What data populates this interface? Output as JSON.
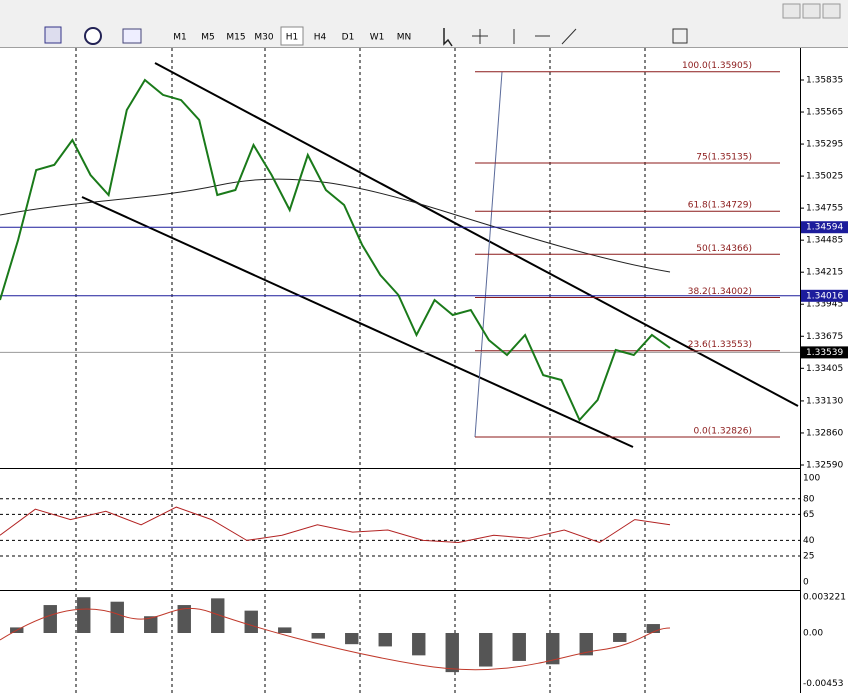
{
  "toolbar": {
    "timeframes": [
      "M1",
      "M5",
      "M15",
      "M30",
      "H1",
      "H4",
      "D1",
      "W1",
      "MN"
    ]
  },
  "price_axis": {
    "ticks": [
      1.35835,
      1.35565,
      1.35295,
      1.35025,
      1.34755,
      1.34485,
      1.34215,
      1.33945,
      1.33675,
      1.33405,
      1.3313,
      1.3286,
      1.3259
    ],
    "ticks_labels": [
      "1.35835",
      "1.35565",
      "1.35295",
      "1.35025",
      "1.34755",
      "1.34485",
      "1.34215",
      "1.33945",
      "1.33675",
      "1.33405",
      "1.33130",
      "1.32860",
      "1.32590"
    ],
    "markers": [
      {
        "value": 1.34594,
        "label": "1.34594",
        "color": "#1c1c9c"
      },
      {
        "value": 1.34016,
        "label": "1.34016",
        "color": "#1c1c9c"
      },
      {
        "value": 1.33539,
        "label": "1.33539",
        "color": "#000000"
      }
    ]
  },
  "fibonacci": [
    {
      "label": "100.0(1.35905)",
      "price": 1.35905
    },
    {
      "label": "75(1.35135)",
      "price": 1.35135
    },
    {
      "label": "61.8(1.34729)",
      "price": 1.34729
    },
    {
      "label": "50(1.34366)",
      "price": 1.34366
    },
    {
      "label": "38.2(1.34002)",
      "price": 1.34002
    },
    {
      "label": "23.6(1.33553)",
      "price": 1.33553
    },
    {
      "label": "0.0(1.32826)",
      "price": 1.32826
    }
  ],
  "price_line": {
    "values": [
      1.33981,
      1.34486,
      1.35076,
      1.35119,
      1.35329,
      1.35034,
      1.34866,
      1.35582,
      1.35835,
      1.35709,
      1.35666,
      1.35498,
      1.34866,
      1.34908,
      1.35287,
      1.35034,
      1.34739,
      1.35203,
      1.34908,
      1.34781,
      1.34444,
      1.34191,
      1.34023,
      1.33686,
      1.33981,
      1.33854,
      1.33896,
      1.33643,
      1.33517,
      1.33686,
      1.33348,
      1.33306,
      1.32969,
      1.33138,
      1.33559,
      1.33517,
      1.33686,
      1.33576
    ]
  },
  "rsi": {
    "ticks": [
      100,
      80,
      65,
      40,
      25,
      0
    ],
    "values": [
      45,
      70,
      60,
      68,
      55,
      72,
      60,
      40,
      45,
      55,
      48,
      50,
      40,
      38,
      45,
      42,
      50,
      38,
      60,
      55
    ]
  },
  "macd": {
    "ticks": [
      {
        "value": 0.003221,
        "label": "0.003221"
      },
      {
        "value": 0,
        "label": "0.00"
      },
      {
        "value": -0.00453,
        "label": "-0.00453"
      }
    ],
    "values": [
      0.0005,
      0.0025,
      0.0032,
      0.0028,
      0.0015,
      0.0025,
      0.0031,
      0.002,
      0.0005,
      -0.0005,
      -0.001,
      -0.0012,
      -0.002,
      -0.0035,
      -0.003,
      -0.0025,
      -0.0028,
      -0.002,
      -0.0008,
      0.0008
    ]
  }
}
